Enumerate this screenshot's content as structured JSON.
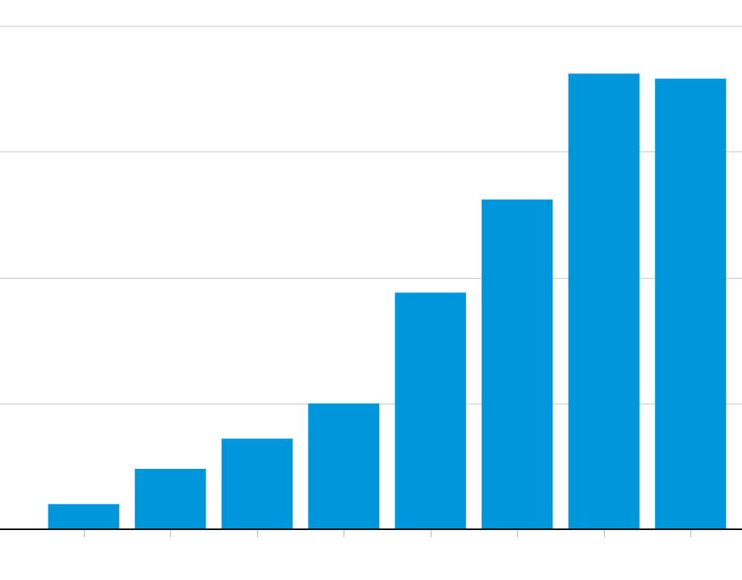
{
  "chart_data": {
    "type": "bar",
    "categories": [
      "",
      "",
      "",
      "",
      "",
      "",
      "",
      ""
    ],
    "values": [
      5,
      12,
      18,
      25,
      47,
      65.5,
      90.5,
      89.5
    ],
    "ylim": [
      0,
      100
    ],
    "yticks": [
      0,
      25,
      50,
      75,
      100
    ],
    "grid": true,
    "colors": {
      "bar": "#0096DB",
      "grid": "#CCCCCC",
      "axis": "#111111",
      "tick": "#BBBBBB"
    }
  }
}
